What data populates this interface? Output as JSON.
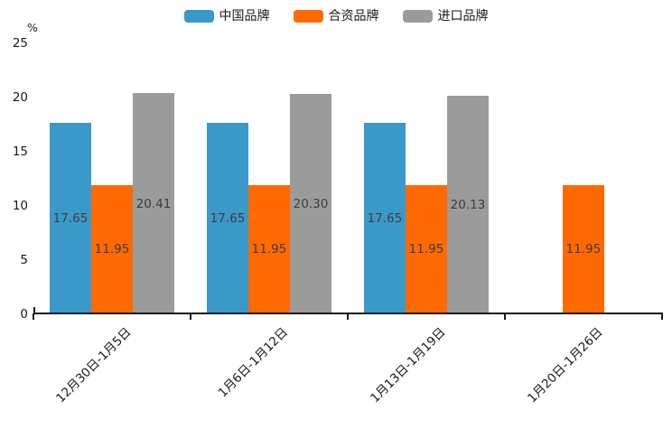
{
  "chart_data": {
    "type": "bar",
    "title": "",
    "unit_label": "%",
    "categories": [
      "12月30日-1月5日",
      "1月6日-1月12日",
      "1月13日-1月19日",
      "1月20日-1月26日"
    ],
    "series": [
      {
        "name": "中国品牌",
        "color": "#3A99C9",
        "values": [
          17.65,
          17.65,
          17.65,
          null
        ]
      },
      {
        "name": "合资品牌",
        "color": "#FF6A00",
        "values": [
          11.95,
          11.95,
          11.95,
          11.95
        ]
      },
      {
        "name": "进口品牌",
        "color": "#9B9B9B",
        "values": [
          20.41,
          20.3,
          20.13,
          null
        ]
      }
    ],
    "ylim": [
      0,
      25
    ],
    "yticks": [
      0,
      5,
      10,
      15,
      20,
      25
    ],
    "legend_position": "top",
    "grid": false,
    "value_labels_shown": true,
    "value_label_decimals": 2
  },
  "colors": {
    "axis": "#1a1a1a",
    "value_label": "#3d3d3d",
    "background": "#ffffff"
  }
}
